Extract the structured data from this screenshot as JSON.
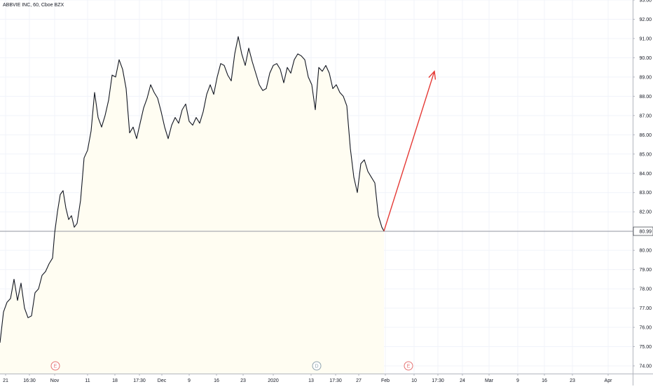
{
  "header": {
    "symbol_title": "ABBVIE INC, 60, Cboe BZX"
  },
  "chart_data": {
    "type": "line",
    "title": "ABBVIE INC, 60, Cboe BZX",
    "xlabel": "",
    "ylabel": "",
    "ylim": [
      73.6,
      93.0
    ],
    "y_ticks": [
      74.0,
      75.0,
      76.0,
      77.0,
      78.0,
      79.0,
      80.0,
      81.0,
      82.0,
      83.0,
      84.0,
      85.0,
      86.0,
      87.0,
      88.0,
      89.0,
      90.0,
      91.0,
      92.0,
      93.0
    ],
    "x_ticks": [
      {
        "label": "21",
        "t": 8
      },
      {
        "label": "16:30",
        "t": 42
      },
      {
        "label": "Nov",
        "t": 78
      },
      {
        "label": "11",
        "t": 125
      },
      {
        "label": "18",
        "t": 164
      },
      {
        "label": "17:30",
        "t": 199
      },
      {
        "label": "Dec",
        "t": 231
      },
      {
        "label": "9",
        "t": 270
      },
      {
        "label": "16",
        "t": 309
      },
      {
        "label": "23",
        "t": 347
      },
      {
        "label": "2020",
        "t": 390
      },
      {
        "label": "13",
        "t": 444
      },
      {
        "label": "17:30",
        "t": 479
      },
      {
        "label": "27",
        "t": 512
      },
      {
        "label": "Feb",
        "t": 550
      },
      {
        "label": "10",
        "t": 591
      },
      {
        "label": "17:30",
        "t": 625
      },
      {
        "label": "24",
        "t": 660
      },
      {
        "label": "Mar",
        "t": 698
      },
      {
        "label": "9",
        "t": 739
      },
      {
        "label": "16",
        "t": 777
      },
      {
        "label": "23",
        "t": 817
      },
      {
        "label": "Apr",
        "t": 868
      }
    ],
    "series": [
      {
        "x": [
          0,
          5,
          10,
          15,
          20,
          25,
          30,
          35,
          40,
          45,
          50,
          55,
          60,
          65,
          70,
          75,
          78,
          82,
          86,
          90,
          94,
          98,
          102,
          106,
          110,
          115,
          120,
          125,
          130,
          135,
          140,
          145,
          150,
          155,
          160,
          165,
          170,
          175,
          180,
          185,
          190,
          195,
          200,
          205,
          210,
          215,
          220,
          225,
          230,
          235,
          240,
          245,
          250,
          255,
          260,
          265,
          270,
          275,
          280,
          285,
          290,
          295,
          300,
          305,
          310,
          315,
          320,
          325,
          330,
          335,
          340,
          345,
          350,
          355,
          360,
          365,
          370,
          375,
          380,
          385,
          390,
          395,
          400,
          405,
          410,
          415,
          420,
          425,
          430,
          435,
          440,
          445,
          450,
          455,
          460,
          465,
          470,
          475,
          480,
          485,
          490,
          495,
          500,
          505,
          510,
          515,
          520,
          525,
          530,
          535,
          540,
          545,
          548
        ],
        "y": [
          75.2,
          76.8,
          77.3,
          77.5,
          78.5,
          77.4,
          78.3,
          77.0,
          76.5,
          76.6,
          77.8,
          78.0,
          78.7,
          78.9,
          79.3,
          79.6,
          80.9,
          82.0,
          82.9,
          83.1,
          82.2,
          81.6,
          81.8,
          81.2,
          81.4,
          82.6,
          84.8,
          85.2,
          86.2,
          88.2,
          86.9,
          86.4,
          87.0,
          87.8,
          89.1,
          89.0,
          89.9,
          89.4,
          88.4,
          86.1,
          86.4,
          85.8,
          86.6,
          87.4,
          87.9,
          88.6,
          88.2,
          87.9,
          87.2,
          86.4,
          85.8,
          86.5,
          86.9,
          86.6,
          87.3,
          87.6,
          86.7,
          86.5,
          86.9,
          86.6,
          87.2,
          88.1,
          88.6,
          88.1,
          89.0,
          89.7,
          89.6,
          89.1,
          88.8,
          90.2,
          91.1,
          90.2,
          89.6,
          90.5,
          89.8,
          89.2,
          88.6,
          88.3,
          88.4,
          89.2,
          89.6,
          89.7,
          89.4,
          88.7,
          89.5,
          89.2,
          89.9,
          90.2,
          90.1,
          89.9,
          89.0,
          88.6,
          87.3,
          89.5,
          89.3,
          89.6,
          89.2,
          88.4,
          88.6,
          88.2,
          88.0,
          87.5,
          85.3,
          83.8,
          83.0,
          84.5,
          84.7,
          84.1,
          83.8,
          83.5,
          81.8,
          81.2,
          81.0
        ]
      }
    ],
    "last_price": 80.99,
    "price_label": "80.99",
    "markers": [
      {
        "label": "E",
        "t": 79
      },
      {
        "label": "D",
        "t": 452
      },
      {
        "label": "E",
        "t": 583
      }
    ],
    "projection": {
      "from": [
        548,
        81.0
      ],
      "to": [
        620,
        89.3
      ]
    },
    "colors": {
      "price_line": "#131722",
      "area_fill": "#fffdf2",
      "projection": "#e53935",
      "marker": "#e57373",
      "marker_d": "#90a4ae",
      "grid": "#f0f3fa",
      "axis_text": "#131722",
      "price_label_bg": "#ffffff"
    },
    "grid": true
  }
}
